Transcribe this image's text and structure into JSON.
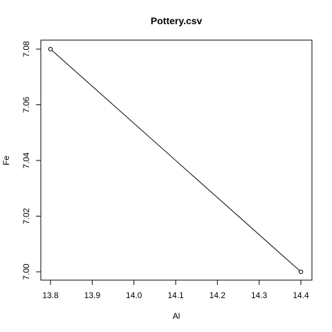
{
  "chart_data": {
    "type": "line",
    "title": "Pottery.csv",
    "xlabel": "Al",
    "ylabel": "Fe",
    "xlim": [
      13.8,
      14.4
    ],
    "ylim": [
      7.0,
      7.08
    ],
    "x_ticks": [
      "13.8",
      "13.9",
      "14.0",
      "14.1",
      "14.2",
      "14.3",
      "14.4"
    ],
    "y_ticks": [
      "7.00",
      "7.02",
      "7.04",
      "7.06",
      "7.08"
    ],
    "series": [
      {
        "x": [
          13.8,
          14.4
        ],
        "y": [
          7.08,
          7.0
        ],
        "marker": "open-circle",
        "line": true
      }
    ],
    "grid": false,
    "legend": "none"
  }
}
